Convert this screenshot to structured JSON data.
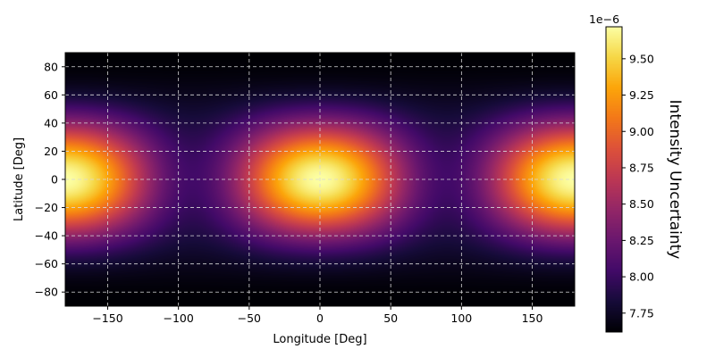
{
  "chart_data": {
    "type": "heatmap",
    "xlabel": "Longitude [Deg]",
    "ylabel": "Latitude [Deg]",
    "xlim": [
      -180,
      180
    ],
    "ylim": [
      -90,
      90
    ],
    "xticks": [
      -150,
      -100,
      -50,
      0,
      50,
      100,
      150
    ],
    "yticks": [
      -80,
      -60,
      -40,
      -20,
      0,
      20,
      40,
      60,
      80
    ],
    "grid": true,
    "colormap": "inferno",
    "field": {
      "description_of_pattern": "latitude-symmetric, two longitudinal maxima",
      "hotspots_lon": [
        0,
        180
      ],
      "hotspot_lat": 0,
      "min_value": 7.62e-06,
      "max_value": 9.72e-06,
      "value_at_lon_-90_lat_0": 8.05e-06,
      "value_at_lat_60_lon_0": 8e-06,
      "value_at_poles": 7.65e-06
    },
    "colorbar": {
      "label": "Intensity Uncertainty",
      "offset_text": "1e−6",
      "range": [
        7.62,
        9.72
      ],
      "ticks": [
        "7.75",
        "8.00",
        "8.25",
        "8.50",
        "8.75",
        "9.00",
        "9.25",
        "9.50"
      ],
      "tick_values": [
        7.75,
        8.0,
        8.25,
        8.5,
        8.75,
        9.0,
        9.25,
        9.5
      ]
    }
  }
}
